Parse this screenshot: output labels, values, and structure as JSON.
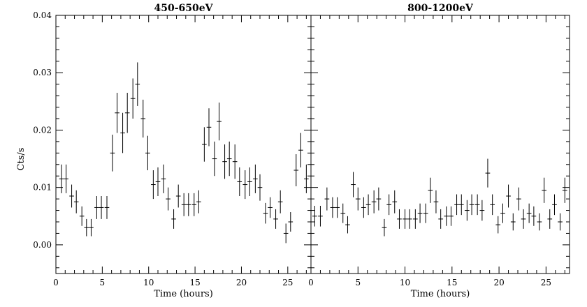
{
  "chart_data": [
    {
      "type": "scatter",
      "title": "450-650eV",
      "xlabel": "Time (hours)",
      "ylabel": "Cts/s",
      "xlim": [
        0,
        27.5
      ],
      "ylim": [
        -0.005,
        0.04
      ],
      "xticks": [
        0,
        5,
        10,
        15,
        20,
        25
      ],
      "xtick_labels": [
        "0",
        "5",
        "10",
        "15",
        "20",
        "25"
      ],
      "yticks": [
        0.0,
        0.01,
        0.02,
        0.03,
        0.04
      ],
      "ytick_labels": [
        "0.00",
        "0.01",
        "0.02",
        "0.03",
        "0.04"
      ],
      "grid": false,
      "bin_width_hours": 0.5,
      "series": [
        {
          "x": [
            0.6,
            1.1,
            1.7,
            2.2,
            2.8,
            3.3,
            3.8,
            4.4,
            4.9,
            5.5,
            6.1,
            6.6,
            7.2,
            7.7,
            8.3,
            8.8,
            9.4,
            9.9,
            10.5,
            11.0,
            11.6,
            12.1,
            12.7,
            13.2,
            13.8,
            14.3,
            14.9,
            15.4,
            16.0,
            16.5,
            17.1,
            17.6,
            18.2,
            18.7,
            19.3,
            19.8,
            20.4,
            20.9,
            21.5,
            22.0,
            22.6,
            23.1,
            23.7,
            24.2,
            24.8,
            25.3,
            25.9,
            26.4,
            27.0
          ],
          "y": [
            0.0115,
            0.0115,
            0.0085,
            0.0075,
            0.005,
            0.003,
            0.003,
            0.0065,
            0.0065,
            0.0065,
            0.016,
            0.023,
            0.0195,
            0.023,
            0.0255,
            0.028,
            0.022,
            0.016,
            0.0105,
            0.011,
            0.0115,
            0.008,
            0.0045,
            0.0085,
            0.007,
            0.007,
            0.007,
            0.0075,
            0.0175,
            0.0205,
            0.015,
            0.0215,
            0.0145,
            0.015,
            0.0145,
            0.011,
            0.0105,
            0.011,
            0.0115,
            0.01,
            0.0055,
            0.0065,
            0.0045,
            0.0075,
            0.002,
            0.004,
            0.013,
            0.0165,
            0.0115
          ],
          "yerr": [
            0.0025,
            0.0025,
            0.002,
            0.002,
            0.0017,
            0.0015,
            0.0015,
            0.002,
            0.002,
            0.002,
            0.0032,
            0.0035,
            0.0035,
            0.0035,
            0.0035,
            0.0038,
            0.0033,
            0.003,
            0.0025,
            0.0025,
            0.0025,
            0.002,
            0.0017,
            0.002,
            0.002,
            0.002,
            0.002,
            0.002,
            0.003,
            0.0033,
            0.003,
            0.0033,
            0.003,
            0.003,
            0.003,
            0.0025,
            0.0025,
            0.0025,
            0.0025,
            0.0023,
            0.0018,
            0.0018,
            0.0017,
            0.002,
            0.0017,
            0.0017,
            0.0028,
            0.003,
            0.0025
          ]
        }
      ]
    },
    {
      "type": "scatter",
      "title": "800-1200eV",
      "xlabel": "Time (hours)",
      "ylabel": "",
      "xlim": [
        0,
        27.5
      ],
      "ylim": [
        -0.005,
        0.04
      ],
      "xticks": [
        0,
        5,
        10,
        15,
        20,
        25
      ],
      "xtick_labels": [
        "0",
        "5",
        "10",
        "15",
        "20",
        "25"
      ],
      "yticks": [
        0.0,
        0.01,
        0.02,
        0.03,
        0.04
      ],
      "ytick_labels": [],
      "grid": false,
      "bin_width_hours": 0.5,
      "series": [
        {
          "x": [
            0.4,
            1.0,
            1.7,
            2.3,
            2.8,
            3.4,
            3.9,
            4.5,
            5.0,
            5.6,
            6.1,
            6.7,
            7.2,
            7.8,
            8.3,
            8.9,
            9.4,
            10.0,
            10.5,
            11.1,
            11.6,
            12.2,
            12.7,
            13.3,
            13.8,
            14.4,
            14.9,
            15.5,
            16.0,
            16.6,
            17.1,
            17.7,
            18.2,
            18.8,
            19.3,
            19.9,
            20.4,
            21.0,
            21.5,
            22.1,
            22.6,
            23.2,
            23.7,
            24.3,
            24.8,
            25.4,
            25.9,
            26.5,
            27.0
          ],
          "y": [
            0.005,
            0.005,
            0.008,
            0.0065,
            0.0065,
            0.0055,
            0.0035,
            0.0105,
            0.008,
            0.0065,
            0.007,
            0.0075,
            0.008,
            0.003,
            0.007,
            0.0075,
            0.0045,
            0.0045,
            0.0045,
            0.0045,
            0.0055,
            0.0055,
            0.0095,
            0.0075,
            0.0045,
            0.005,
            0.005,
            0.007,
            0.007,
            0.006,
            0.007,
            0.007,
            0.006,
            0.0125,
            0.007,
            0.0035,
            0.0055,
            0.0085,
            0.004,
            0.008,
            0.0045,
            0.0055,
            0.005,
            0.004,
            0.0095,
            0.0045,
            0.007,
            0.004,
            0.0095
          ],
          "yerr": [
            0.0018,
            0.0018,
            0.002,
            0.0018,
            0.0018,
            0.0017,
            0.0015,
            0.0022,
            0.002,
            0.0018,
            0.0018,
            0.002,
            0.002,
            0.0015,
            0.0018,
            0.002,
            0.0017,
            0.0017,
            0.0017,
            0.0017,
            0.0017,
            0.0017,
            0.0022,
            0.002,
            0.0017,
            0.0017,
            0.0017,
            0.0018,
            0.0018,
            0.0018,
            0.0018,
            0.0018,
            0.0018,
            0.0025,
            0.0018,
            0.0015,
            0.0017,
            0.002,
            0.0015,
            0.002,
            0.0017,
            0.0017,
            0.0017,
            0.0015,
            0.0022,
            0.0017,
            0.0018,
            0.0015,
            0.0022
          ]
        }
      ]
    }
  ]
}
